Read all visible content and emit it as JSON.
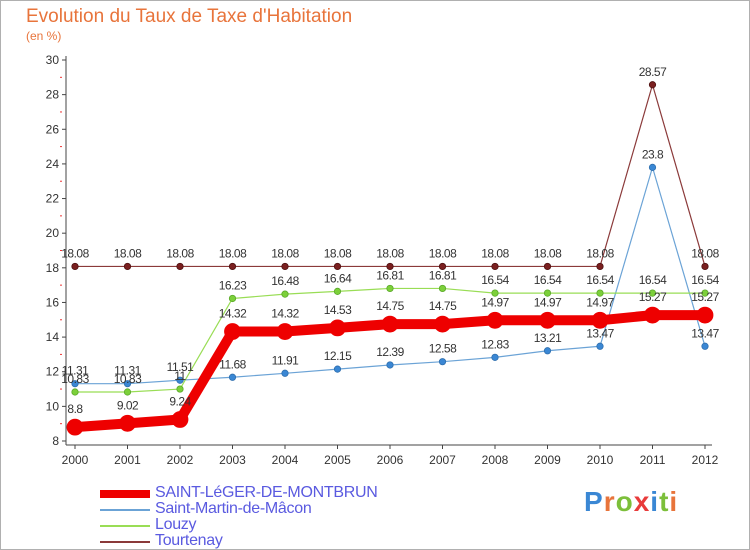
{
  "title": "Evolution du Taux de Taxe d'Habitation",
  "subtitle": "(en %)",
  "logo": {
    "letters": [
      "P",
      "r",
      "o",
      "x",
      "i",
      "t",
      "i"
    ],
    "colors": [
      "#3a87d4",
      "#e8743b",
      "#7cbf3a",
      "#e83b3b",
      "#3a87d4",
      "#7cbf3a",
      "#e8743b"
    ]
  },
  "chart_data": {
    "type": "line",
    "title": "Evolution du Taux de Taxe d'Habitation",
    "ylabel": "(en %)",
    "xlabel": "",
    "x": [
      "2000",
      "2001",
      "2002",
      "2003",
      "2004",
      "2005",
      "2006",
      "2007",
      "2008",
      "2009",
      "2010",
      "2011",
      "2012"
    ],
    "ylim": [
      8,
      30
    ],
    "yticks": [
      8,
      10,
      12,
      14,
      16,
      18,
      20,
      22,
      24,
      26,
      28,
      30
    ],
    "grid": false,
    "legend_position": "bottom-left",
    "series": [
      {
        "name": "SAINT-LéGER-DE-MONTBRUN",
        "color": "#ee0000",
        "values": [
          8.8,
          9.02,
          9.24,
          14.32,
          14.32,
          14.53,
          14.75,
          14.75,
          14.97,
          14.97,
          14.97,
          15.27,
          15.27
        ],
        "labels": [
          "8.8",
          "9.02",
          "9.24",
          "14.32",
          "14.32",
          "14.53",
          "14.75",
          "14.75",
          "14.97",
          "14.97",
          "14.97",
          "15.27",
          "15.27"
        ]
      },
      {
        "name": "Saint-Martin-de-Mâcon",
        "color": "#6ba3d6",
        "values": [
          11.31,
          11.31,
          11.51,
          11.68,
          11.91,
          12.15,
          12.39,
          12.58,
          12.83,
          13.21,
          13.47,
          23.8,
          13.47
        ],
        "labels": [
          "11.31",
          "11.31",
          "11.51",
          "11.68",
          "11.91",
          "12.15",
          "12.39",
          "12.58",
          "12.83",
          "13.21",
          "13.47",
          "23.8",
          "13.47"
        ]
      },
      {
        "name": "Louzy",
        "color": "#99dd55",
        "values": [
          10.83,
          10.83,
          11,
          16.23,
          16.48,
          16.64,
          16.81,
          16.81,
          16.54,
          16.54,
          16.54,
          16.54,
          16.54
        ],
        "labels": [
          "10.83",
          "10.83",
          "11",
          "16.23",
          "16.48",
          "16.64",
          "16.81",
          "16.81",
          "16.54",
          "16.54",
          "16.54",
          "16.54",
          "16.54"
        ]
      },
      {
        "name": "Tourtenay",
        "color": "#8b3a3a",
        "values": [
          18.08,
          18.08,
          18.08,
          18.08,
          18.08,
          18.08,
          18.08,
          18.08,
          18.08,
          18.08,
          18.08,
          28.57,
          18.08
        ],
        "labels": [
          "18.08",
          "18.08",
          "18.08",
          "18.08",
          "18.08",
          "18.08",
          "18.08",
          "18.08",
          "18.08",
          "18.08",
          "18.08",
          "28.57",
          "18.08"
        ]
      }
    ]
  }
}
